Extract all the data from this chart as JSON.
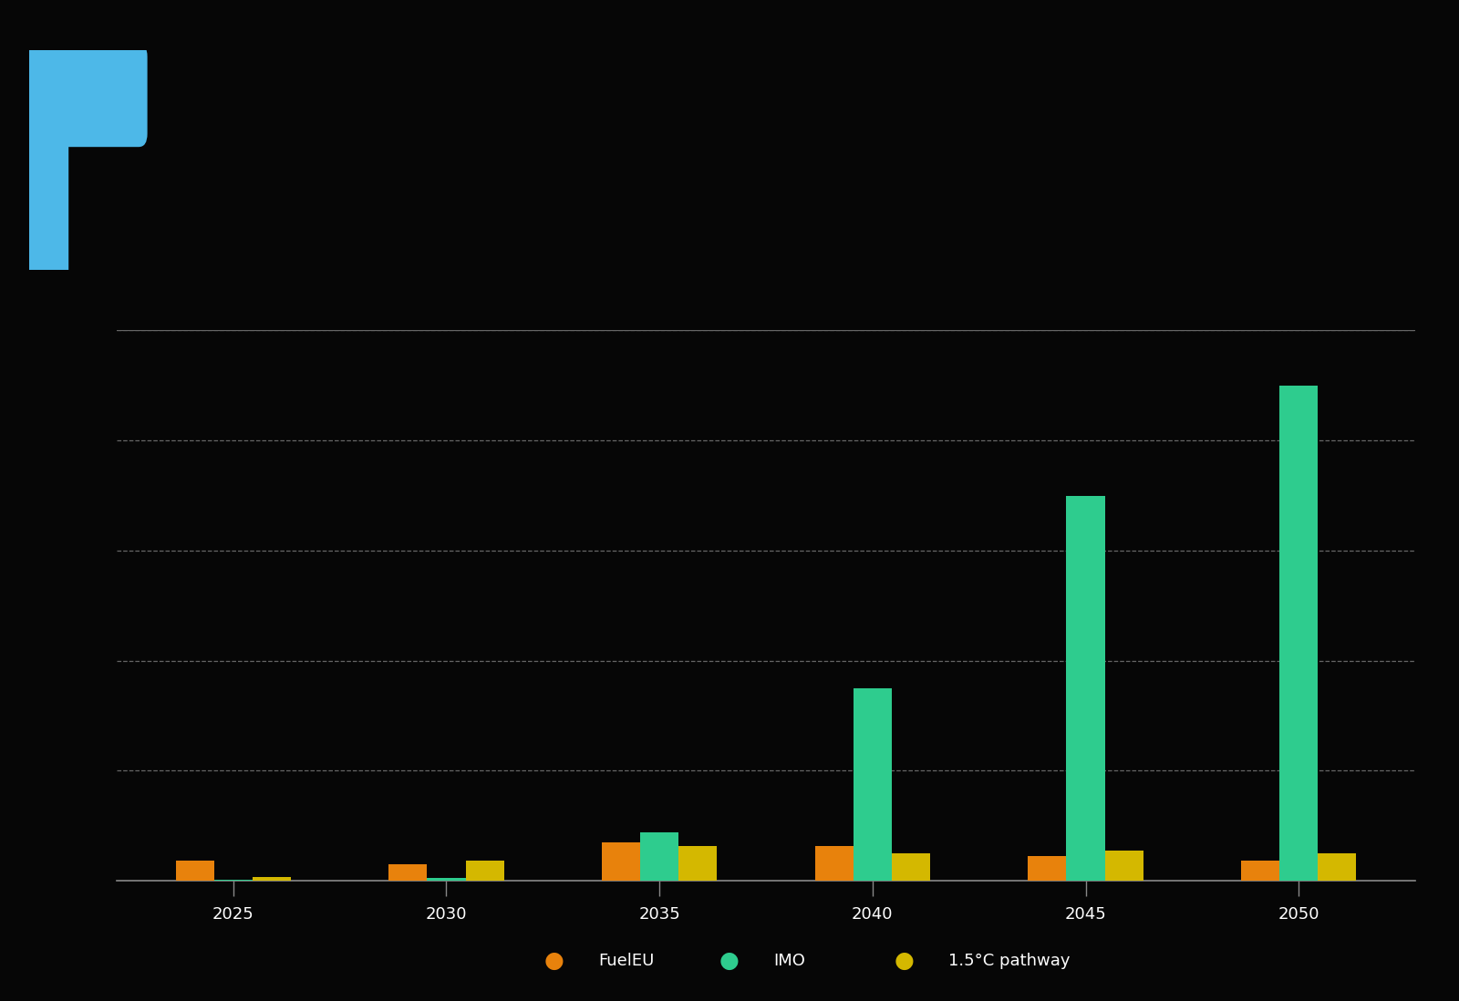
{
  "background_color": "#060606",
  "text_color": "#ffffff",
  "grid_color": "#666666",
  "categories": [
    "2025",
    "2030",
    "2035",
    "2040",
    "2045",
    "2050"
  ],
  "series": [
    {
      "name": "FuelEU",
      "color": "#e8820c",
      "values": [
        1.5,
        1.2,
        2.8,
        2.5,
        1.8,
        1.5
      ]
    },
    {
      "name": "IMO",
      "color": "#2ecc8e",
      "values": [
        0.05,
        0.2,
        3.5,
        14.0,
        28.0,
        36.0
      ]
    },
    {
      "name": "1.5°C pathway",
      "color": "#d4b800",
      "values": [
        0.3,
        1.5,
        2.5,
        2.0,
        2.2,
        2.0
      ]
    }
  ],
  "ylim": [
    0,
    40
  ],
  "n_gridlines": 5,
  "bar_width": 0.18,
  "logo_color": "#4db8e8",
  "axis_line_color": "#888888",
  "tick_color": "#888888",
  "tick_label_fontsize": 13,
  "legend_fontsize": 13,
  "legend_dot_size": 100
}
